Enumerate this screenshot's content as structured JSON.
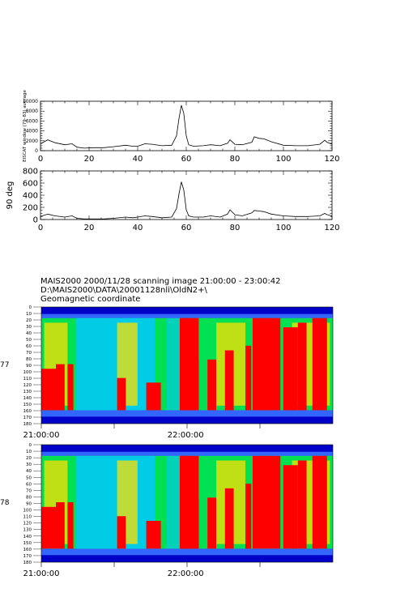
{
  "chart_data": [
    {
      "type": "line",
      "ylabel": "EISCAT window (79–83) average",
      "xlim": [
        0,
        120
      ],
      "ylim": [
        0,
        10000
      ],
      "xticks": [
        "0",
        "20",
        "40",
        "60",
        "80",
        "100",
        "120"
      ],
      "yticks": [
        "0",
        "2000",
        "4000",
        "6000",
        "8000",
        "10000"
      ],
      "x": [
        0,
        3,
        6,
        10,
        13,
        15,
        18,
        22,
        26,
        30,
        35,
        38,
        40,
        43,
        46,
        50,
        54,
        56,
        57,
        58,
        59,
        60,
        61,
        63,
        67,
        70,
        74,
        77,
        78,
        80,
        83,
        87,
        88,
        90,
        92,
        95,
        100,
        105,
        110,
        115,
        117,
        118,
        120
      ],
      "y": [
        1400,
        2200,
        1600,
        1200,
        1400,
        700,
        500,
        600,
        600,
        800,
        1100,
        900,
        900,
        1400,
        1300,
        1000,
        1100,
        3000,
        6500,
        9200,
        7500,
        3000,
        1200,
        900,
        1000,
        1200,
        1000,
        1500,
        2200,
        1300,
        1200,
        1700,
        2800,
        2500,
        2400,
        1800,
        1100,
        1000,
        1000,
        1300,
        2100,
        1700,
        1300
      ]
    },
    {
      "type": "line",
      "ylabel": "90 deg",
      "xlim": [
        0,
        120
      ],
      "ylim": [
        0,
        800
      ],
      "xticks": [
        "0",
        "20",
        "40",
        "60",
        "80",
        "100",
        "120"
      ],
      "yticks": [
        "0",
        "200",
        "400",
        "600",
        "800"
      ],
      "x": [
        0,
        3,
        6,
        10,
        13,
        15,
        18,
        22,
        26,
        30,
        35,
        38,
        40,
        43,
        46,
        50,
        54,
        56,
        57,
        58,
        59,
        60,
        61,
        63,
        67,
        70,
        74,
        77,
        78,
        80,
        83,
        87,
        88,
        90,
        92,
        95,
        100,
        105,
        110,
        115,
        117,
        118,
        120
      ],
      "y": [
        50,
        90,
        60,
        40,
        60,
        20,
        10,
        10,
        10,
        20,
        40,
        30,
        40,
        60,
        50,
        30,
        40,
        180,
        420,
        620,
        480,
        160,
        60,
        40,
        40,
        60,
        40,
        90,
        160,
        80,
        60,
        110,
        150,
        140,
        130,
        90,
        60,
        50,
        50,
        60,
        100,
        80,
        60
      ]
    },
    {
      "type": "heatmap",
      "panel": "scan-77",
      "yticks": [
        "0",
        "10",
        "20",
        "30",
        "40",
        "50",
        "60",
        "70",
        "80",
        "90",
        "100",
        "110",
        "120",
        "130",
        "140",
        "150",
        "160",
        "170",
        "180"
      ],
      "xticks": [
        "21:00:00",
        "22:00:00"
      ],
      "side_label": "77"
    },
    {
      "type": "heatmap",
      "panel": "scan-78",
      "yticks": [
        "0",
        "10",
        "20",
        "30",
        "40",
        "50",
        "60",
        "70",
        "80",
        "90",
        "100",
        "110",
        "120",
        "130",
        "140",
        "150",
        "160",
        "170",
        "180"
      ],
      "xticks": [
        "21:00:00",
        "22:00:00"
      ],
      "side_label": "78"
    }
  ],
  "header": {
    "line1": "MAIS2000 2000/11/28 scanning image 21:00:00 - 23:00:42",
    "line2": "D:\\MAIS2000\\DATA\\20001128nli\\OldN2+\\",
    "line3": "Geomagnetic coordinate"
  },
  "colors": {
    "background": "#0000c8",
    "low": "#00c8ff",
    "mid": "#00e050",
    "high": "#ffe000",
    "max": "#ff0000"
  }
}
